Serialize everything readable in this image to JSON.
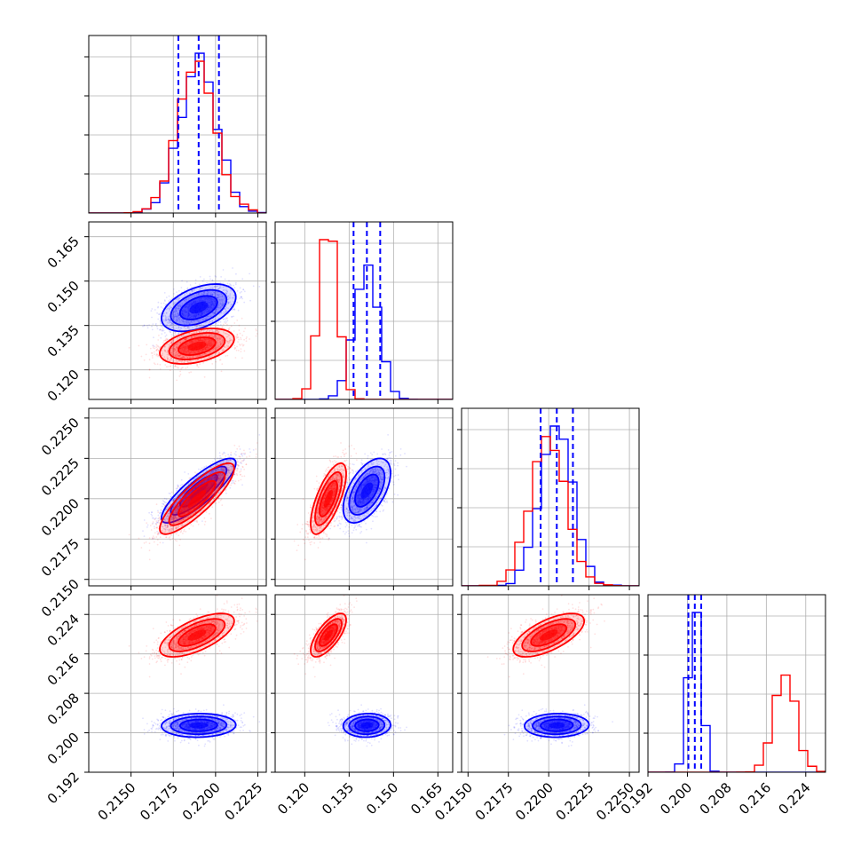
{
  "chart_data": {
    "type": "corner",
    "title": "",
    "colors": {
      "series_a": "#0000ff",
      "series_b": "#ff0000",
      "quantile_line": "#0000ff",
      "grid": "#b0b0b0"
    },
    "grid": true,
    "params": [
      {
        "range": [
          0.2125,
          0.223
        ],
        "ticks": [
          "0.2150",
          "0.2175",
          "0.2200",
          "0.2225"
        ]
      },
      {
        "range": [
          0.11,
          0.17
        ],
        "ticks": [
          "0.120",
          "0.135",
          "0.150",
          "0.165"
        ]
      },
      {
        "range": [
          0.2146,
          0.2256
        ],
        "ticks": [
          "0.2150",
          "0.2175",
          "0.2200",
          "0.2225",
          "0.2250"
        ]
      },
      {
        "range": [
          0.192,
          0.228
        ],
        "ticks": [
          "0.192",
          "0.200",
          "0.208",
          "0.216",
          "0.224"
        ]
      }
    ],
    "series": [
      {
        "color": "blue",
        "means": [
          0.219,
          0.141,
          0.2205,
          0.2015
        ],
        "sigmas": [
          0.0011,
          0.004,
          0.001,
          0.0012
        ],
        "correlations": [
          [
            0,
            1,
            0.45
          ],
          [
            0,
            2,
            0.85
          ],
          [
            1,
            2,
            0.55
          ],
          [
            0,
            3,
            0.05
          ],
          [
            1,
            3,
            0.05
          ],
          [
            2,
            3,
            0.05
          ]
        ]
      },
      {
        "color": "red",
        "means": [
          0.2189,
          0.128,
          0.22,
          0.2198
        ],
        "sigmas": [
          0.0011,
          0.003,
          0.0011,
          0.0022
        ],
        "correlations": [
          [
            0,
            1,
            0.4
          ],
          [
            0,
            2,
            0.85
          ],
          [
            1,
            2,
            0.7
          ],
          [
            0,
            3,
            0.65
          ],
          [
            1,
            3,
            0.7
          ],
          [
            2,
            3,
            0.65
          ]
        ]
      }
    ],
    "quantile_lines": [
      [
        0.2178,
        0.219,
        0.2202
      ],
      [
        0.1365,
        0.141,
        0.1455
      ],
      [
        0.2195,
        0.2205,
        0.2215
      ],
      [
        0.2002,
        0.2015,
        0.2028
      ]
    ]
  }
}
